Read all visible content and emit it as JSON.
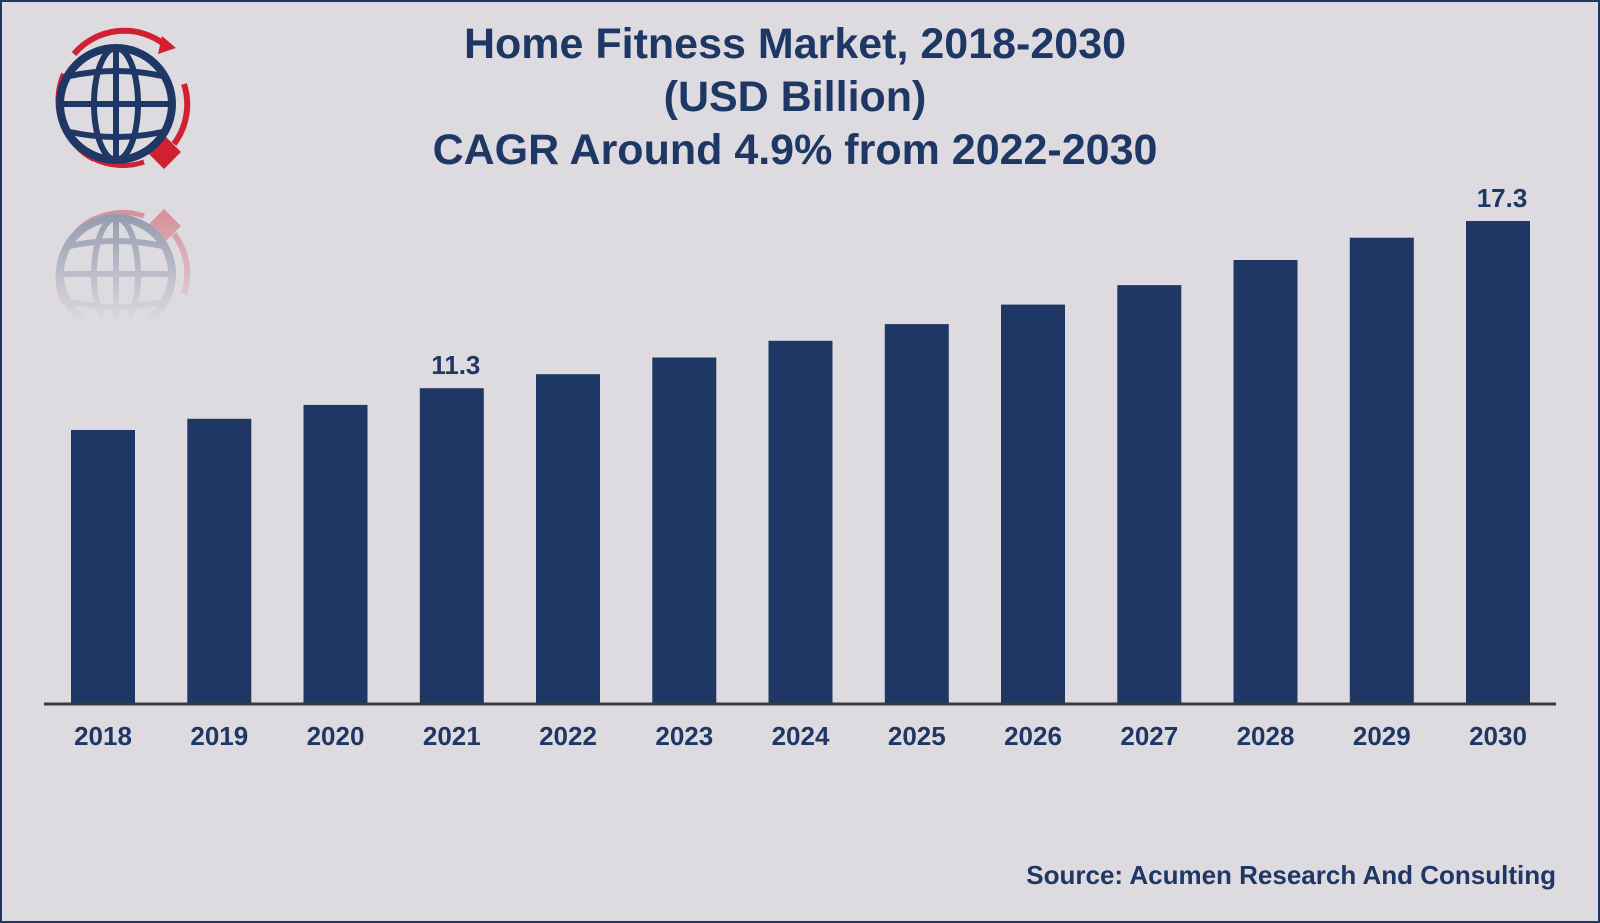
{
  "chart_data": {
    "type": "bar",
    "title": "Home Fitness Market, 2018-2030",
    "subtitle_lines": [
      "(USD Billion)",
      "CAGR Around 4.9% from 2022-2030"
    ],
    "categories": [
      "2018",
      "2019",
      "2020",
      "2021",
      "2022",
      "2023",
      "2024",
      "2025",
      "2026",
      "2027",
      "2028",
      "2029",
      "2030"
    ],
    "values": [
      9.8,
      10.2,
      10.7,
      11.3,
      11.8,
      12.4,
      13.0,
      13.6,
      14.3,
      15.0,
      15.9,
      16.7,
      17.3
    ],
    "data_labels": [
      {
        "index": 3,
        "text": "11.3"
      },
      {
        "index": 12,
        "text": "17.3"
      }
    ],
    "ylim": [
      0,
      17.3
    ],
    "grid": false,
    "bar_color": "#1f3764",
    "xlabel": "",
    "ylabel": ""
  },
  "source": "Source: Acumen Research And Consulting",
  "logo": {
    "icon": "globe-logo-icon",
    "colors": {
      "ring": "#d1202f",
      "globe": "#1f3764"
    }
  }
}
